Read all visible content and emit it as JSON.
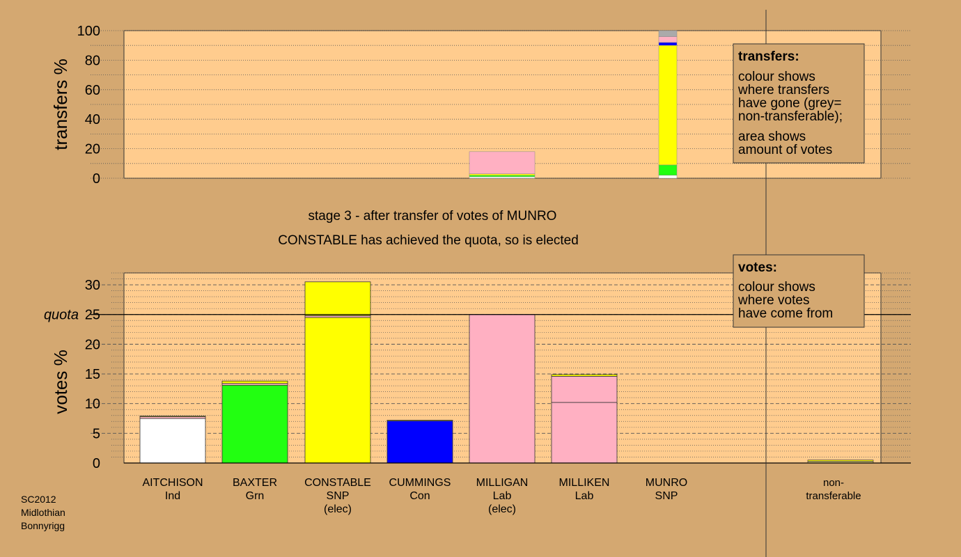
{
  "colors": {
    "background": "#d4a871",
    "plot_bg": "#ffcc8e",
    "box_bg": "#d4a871",
    "white": "#ffffff",
    "green": "#22ff11",
    "yellow": "#ffff00",
    "blue": "#0000ff",
    "pink": "#ffb0c2",
    "grey": "#aaaaaa",
    "nontransfer": "#c8b878"
  },
  "stage_title": "stage 3 - after transfer of votes of MUNRO",
  "stage_subtitle": "CONSTABLE has achieved the quota, so is elected",
  "footer": {
    "line1": "SC2012",
    "line2": "Midlothian",
    "line3": "Bonnyrigg"
  },
  "transfers_box": {
    "title": "transfers:",
    "text1": "colour shows",
    "text2": "where transfers",
    "text3": "have gone (grey=",
    "text4": "non-transferable);",
    "text5": "area shows",
    "text6": "amount of votes"
  },
  "votes_box": {
    "title": "votes:",
    "text1": "colour shows",
    "text2": "where votes",
    "text3": "have come from"
  },
  "candidates": [
    {
      "name": "AITCHISON",
      "party": "Ind",
      "status": ""
    },
    {
      "name": "BAXTER",
      "party": "Grn",
      "status": ""
    },
    {
      "name": "CONSTABLE",
      "party": "SNP",
      "status": "(elec)"
    },
    {
      "name": "CUMMINGS",
      "party": "Con",
      "status": ""
    },
    {
      "name": "MILLIGAN",
      "party": "Lab",
      "status": "(elec)"
    },
    {
      "name": "MILLIKEN",
      "party": "Lab",
      "status": ""
    },
    {
      "name": "MUNRO",
      "party": "SNP",
      "status": ""
    }
  ],
  "nontransferable_label": {
    "line1": "non-",
    "line2": "transferable"
  },
  "chart_data": [
    {
      "type": "bar",
      "ylabel": "transfers %",
      "ylim": [
        0,
        100
      ],
      "yticks": [
        0,
        20,
        40,
        60,
        80,
        100
      ],
      "grid": true,
      "columns": [
        {
          "column_index": 4,
          "segments": [
            {
              "from": 0,
              "to": 1,
              "color": "white"
            },
            {
              "from": 1,
              "to": 2,
              "color": "green"
            },
            {
              "from": 2,
              "to": 3,
              "color": "yellow"
            },
            {
              "from": 3,
              "to": 18,
              "color": "pink"
            }
          ]
        },
        {
          "column_index": 6,
          "segments": [
            {
              "from": 0,
              "to": 2,
              "color": "white"
            },
            {
              "from": 2,
              "to": 9,
              "color": "green"
            },
            {
              "from": 9,
              "to": 90,
              "color": "yellow"
            },
            {
              "from": 90,
              "to": 92,
              "color": "blue"
            },
            {
              "from": 92,
              "to": 96,
              "color": "pink"
            },
            {
              "from": 96,
              "to": 100,
              "color": "grey"
            }
          ]
        }
      ]
    },
    {
      "type": "bar",
      "ylabel": "votes %",
      "ylim": [
        0,
        32
      ],
      "yticks": [
        0,
        5,
        10,
        15,
        20,
        25,
        30
      ],
      "quota": 25,
      "quota_label": "quota",
      "grid": true,
      "stacks": [
        [
          {
            "from": 0,
            "to": 7.5,
            "color": "white"
          },
          {
            "from": 7.5,
            "to": 7.8,
            "color": "pink"
          },
          {
            "from": 7.8,
            "to": 7.9,
            "color": "yellow"
          }
        ],
        [
          {
            "from": 0,
            "to": 13.1,
            "color": "green"
          },
          {
            "from": 13.1,
            "to": 13.4,
            "color": "pink"
          },
          {
            "from": 13.4,
            "to": 13.8,
            "color": "yellow"
          }
        ],
        [
          {
            "from": 0,
            "to": 24.5,
            "color": "yellow"
          },
          {
            "from": 24.5,
            "to": 24.8,
            "color": "pink"
          },
          {
            "from": 24.8,
            "to": 30.5,
            "color": "yellow"
          }
        ],
        [
          {
            "from": 0,
            "to": 7.1,
            "color": "blue"
          },
          {
            "from": 7.1,
            "to": 7.2,
            "color": "yellow"
          }
        ],
        [
          {
            "from": 0,
            "to": 25.0,
            "color": "pink"
          }
        ],
        [
          {
            "from": 0,
            "to": 10.2,
            "color": "pink"
          },
          {
            "from": 10.2,
            "to": 14.6,
            "color": "pink"
          },
          {
            "from": 14.6,
            "to": 14.9,
            "color": "yellow"
          }
        ],
        []
      ],
      "nontransferable": [
        {
          "from": 0,
          "to": 0.3,
          "color": "nontransfer"
        },
        {
          "from": 0.3,
          "to": 0.5,
          "color": "yellow"
        }
      ]
    }
  ]
}
